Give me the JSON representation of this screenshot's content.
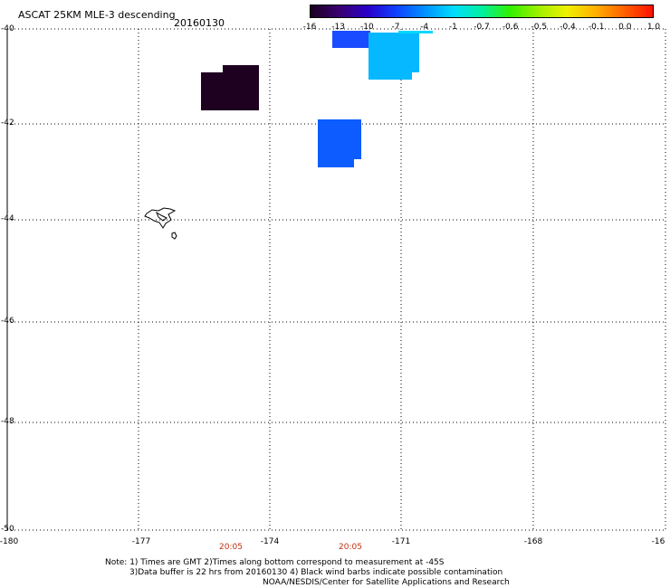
{
  "header": {
    "title": "ASCAT 25KM MLE-3 descending",
    "date": "20160130"
  },
  "colorbar": {
    "labels": [
      "-16",
      "-13",
      "-10",
      "-7",
      "-4",
      "-1",
      "-0.7",
      "-0.6",
      "-0.5",
      "-0.4",
      "-0.1",
      "0.0",
      "1.0"
    ],
    "colors": [
      "#1a0020",
      "#3a0070",
      "#2800c8",
      "#1040ff",
      "#0090ff",
      "#00dcff",
      "#00f0a0",
      "#30f000",
      "#a0f000",
      "#f0f000",
      "#ffb000",
      "#ff6000",
      "#ff1000"
    ]
  },
  "map": {
    "lat_labels": [
      "-40",
      "-42",
      "-44",
      "-46",
      "-48",
      "-50"
    ],
    "lon_labels": [
      "-180",
      "-177",
      "-174",
      "-171",
      "-168",
      "-16"
    ],
    "times": [
      "20:05",
      "20:05"
    ],
    "cells": [
      {
        "name": "cell-dark-1",
        "color": "#1e0020"
      },
      {
        "name": "cell-blue-1",
        "color": "#1a4cff"
      },
      {
        "name": "cell-cyan-1",
        "color": "#06b8ff"
      },
      {
        "name": "cell-blue-2",
        "color": "#0c5cff"
      }
    ]
  },
  "notes": {
    "line1": "Note: 1) Times are GMT 2)Times along bottom correspond to measurement at -45S",
    "line2": "3)Data buffer is 22 hrs from 20160130 4) Black wind barbs indicate possible contamination",
    "line3": "NOAA/NESDIS/Center for Satellite Applications and Research"
  }
}
